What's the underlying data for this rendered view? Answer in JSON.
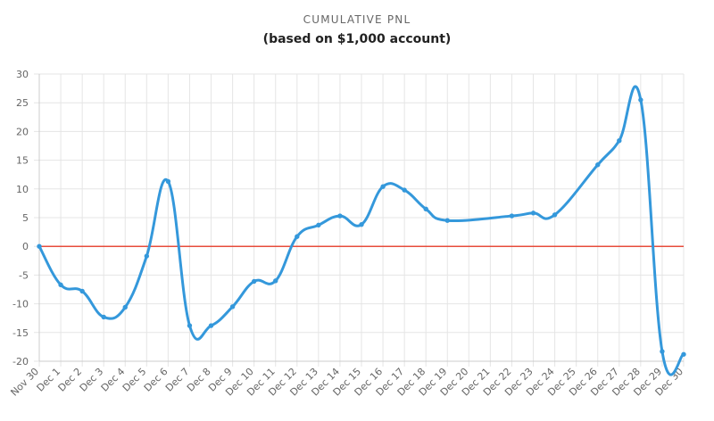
{
  "title": "CUMULATIVE PNL",
  "subtitle": "(based on $1,000 account)",
  "colors": {
    "series": "#3498db",
    "zero_line": "#e74c3c",
    "grid": "#e5e5e5",
    "axis": "#cccccc"
  },
  "chart_data": {
    "type": "line",
    "title": "CUMULATIVE PNL",
    "subtitle": "(based on $1,000 account)",
    "xlabel": "",
    "ylabel": "",
    "ylim": [
      -20,
      30
    ],
    "yticks": [
      30,
      25,
      20,
      15,
      10,
      5,
      0,
      -5,
      -10,
      -15,
      -20
    ],
    "grid": true,
    "zero_line": 0,
    "categories": [
      "Nov 30",
      "Dec 1",
      "Dec 2",
      "Dec 3",
      "Dec 4",
      "Dec 5",
      "Dec 6",
      "Dec 7",
      "Dec 8",
      "Dec 9",
      "Dec 10",
      "Dec 11",
      "Dec 12",
      "Dec 13",
      "Dec 14",
      "Dec 15",
      "Dec 16",
      "Dec 17",
      "Dec 18",
      "Dec 19",
      "Dec 20",
      "Dec 21",
      "Dec 22",
      "Dec 23",
      "Dec 24",
      "Dec 25",
      "Dec 26",
      "Dec 27",
      "Dec 28",
      "Dec 29",
      "Dec 30"
    ],
    "series": [
      {
        "values": [
          0,
          -6.7,
          -7.8,
          -12.3,
          -10.6,
          -1.7,
          11.3,
          -13.8,
          -13.8,
          -10.5,
          -6.1,
          -6.0,
          1.7,
          3.7,
          5.3,
          3.8,
          10.4,
          9.8,
          6.5,
          4.5,
          null,
          null,
          5.3,
          5.8,
          5.5,
          null,
          14.2,
          18.4,
          25.5,
          -18.3,
          -18.8
        ]
      }
    ]
  }
}
